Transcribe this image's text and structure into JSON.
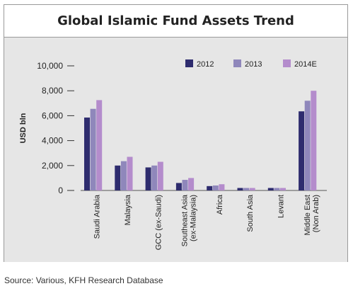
{
  "chart_data": {
    "type": "bar",
    "title": "Global Islamic Fund Assets Trend",
    "ylabel": "USD bln",
    "xlabel": "",
    "ylim": [
      0,
      10000
    ],
    "yticks": [
      0,
      2000,
      4000,
      6000,
      8000,
      10000
    ],
    "ytick_labels": [
      "0",
      "2,000",
      "4,000",
      "6,000",
      "8,000",
      "10,000"
    ],
    "categories": [
      "Saudi Arabia",
      "Malaysia",
      "GCC (ex-Saudi)",
      "Southeast Asia\n(ex-Malaysia)",
      "Africa",
      "South Asia",
      "Levant",
      "Middle East\n(Non Arab)"
    ],
    "series": [
      {
        "name": "2012",
        "color": "#2e2c6e",
        "values": [
          5850,
          2000,
          1850,
          600,
          350,
          200,
          200,
          6350
        ]
      },
      {
        "name": "2013",
        "color": "#8f87bb",
        "values": [
          6550,
          2350,
          2000,
          850,
          400,
          200,
          200,
          7200
        ]
      },
      {
        "name": "2014E",
        "color": "#b48ccc",
        "values": [
          7250,
          2700,
          2300,
          1000,
          500,
          200,
          200,
          8000
        ]
      }
    ],
    "legend_position": "top-right",
    "grid": false
  },
  "source_note": "Source: Various, KFH Research Database"
}
